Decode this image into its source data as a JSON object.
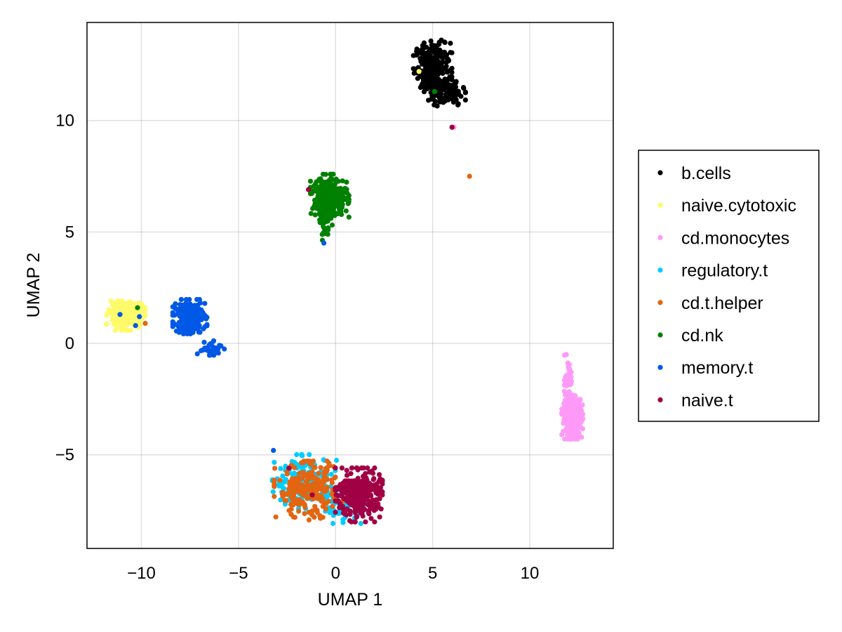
{
  "chart_data": {
    "type": "scatter",
    "title": "",
    "xlabel": "UMAP 1",
    "ylabel": "UMAP 2",
    "xlim": [
      -12.8,
      14.3
    ],
    "ylim": [
      -9.2,
      14.4
    ],
    "xticks": [
      -10,
      -5,
      0,
      5,
      10
    ],
    "yticks": [
      -5,
      0,
      5,
      10
    ],
    "xtick_labels": [
      "−10",
      "−5",
      "0",
      "5",
      "10"
    ],
    "ytick_labels": [
      "−5",
      "0",
      "5",
      "10"
    ],
    "grid": true,
    "legend_position": "right",
    "series": [
      {
        "name": "b.cells",
        "color": "#000000",
        "clusters": [
          {
            "center": [
              5.0,
              12.4
            ],
            "spread": [
              0.45,
              0.55
            ],
            "count": 260
          },
          {
            "center": [
              5.7,
              11.2
            ],
            "spread": [
              0.45,
              0.25
            ],
            "count": 90
          }
        ],
        "points": [
          [
            6.0,
            9.7
          ],
          [
            6.3,
            10.7
          ],
          [
            4.2,
            12.2
          ]
        ]
      },
      {
        "name": "naive.cytotoxic",
        "color": "#fffa6a",
        "clusters": [
          {
            "center": [
              -10.8,
              1.25
            ],
            "spread": [
              0.45,
              0.3
            ],
            "count": 240
          }
        ],
        "points": [
          [
            4.3,
            12.2
          ],
          [
            -8.3,
            1.6
          ]
        ]
      },
      {
        "name": "cd.monocytes",
        "color": "#ff99f8",
        "clusters": [
          {
            "center": [
              12.2,
              -3.3
            ],
            "spread": [
              0.25,
              0.45
            ],
            "count": 280
          },
          {
            "center": [
              12.0,
              -1.6
            ],
            "spread": [
              0.1,
              0.5
            ],
            "count": 50
          }
        ],
        "points": [
          [
            6.1,
            9.7
          ]
        ]
      },
      {
        "name": "regulatory.t",
        "color": "#00cdff",
        "clusters": [
          {
            "center": [
              -1.6,
              -6.2
            ],
            "spread": [
              0.75,
              0.55
            ],
            "count": 160
          },
          {
            "center": [
              0.3,
              -7.2
            ],
            "spread": [
              0.55,
              0.4
            ],
            "count": 60
          }
        ],
        "points": [
          [
            -7.2,
            1.2
          ],
          [
            0.5,
            -7.8
          ]
        ]
      },
      {
        "name": "cd.t.helper",
        "color": "#e36511",
        "clusters": [
          {
            "center": [
              -1.4,
              -6.6
            ],
            "spread": [
              0.8,
              0.6
            ],
            "count": 230
          }
        ],
        "points": [
          [
            6.9,
            7.5
          ],
          [
            -9.8,
            0.9
          ]
        ]
      },
      {
        "name": "cd.nk",
        "color": "#008000",
        "clusters": [
          {
            "center": [
              -0.3,
              6.6
            ],
            "spread": [
              0.45,
              0.45
            ],
            "count": 280
          },
          {
            "center": [
              -0.5,
              5.4
            ],
            "spread": [
              0.15,
              0.35
            ],
            "count": 40
          }
        ],
        "points": [
          [
            -10.2,
            1.6
          ],
          [
            5.1,
            11.3
          ],
          [
            -1.3,
            7.0
          ]
        ]
      },
      {
        "name": "memory.t",
        "color": "#0058e7",
        "clusters": [
          {
            "center": [
              -7.5,
              1.2
            ],
            "spread": [
              0.4,
              0.35
            ],
            "count": 260
          },
          {
            "center": [
              -6.5,
              -0.2
            ],
            "spread": [
              0.35,
              0.2
            ],
            "count": 35
          }
        ],
        "points": [
          [
            -11.1,
            1.3
          ],
          [
            -10.1,
            1.2
          ],
          [
            -10.3,
            0.8
          ],
          [
            -0.6,
            4.5
          ],
          [
            -3.2,
            -4.8
          ]
        ]
      },
      {
        "name": "naive.t",
        "color": "#a10044",
        "clusters": [
          {
            "center": [
              1.2,
              -6.8
            ],
            "spread": [
              0.55,
              0.55
            ],
            "count": 300
          }
        ],
        "points": [
          [
            6.0,
            9.7
          ],
          [
            -1.4,
            6.9
          ],
          [
            -2.4,
            -5.6
          ],
          [
            -1.2,
            -6.8
          ]
        ]
      }
    ]
  }
}
